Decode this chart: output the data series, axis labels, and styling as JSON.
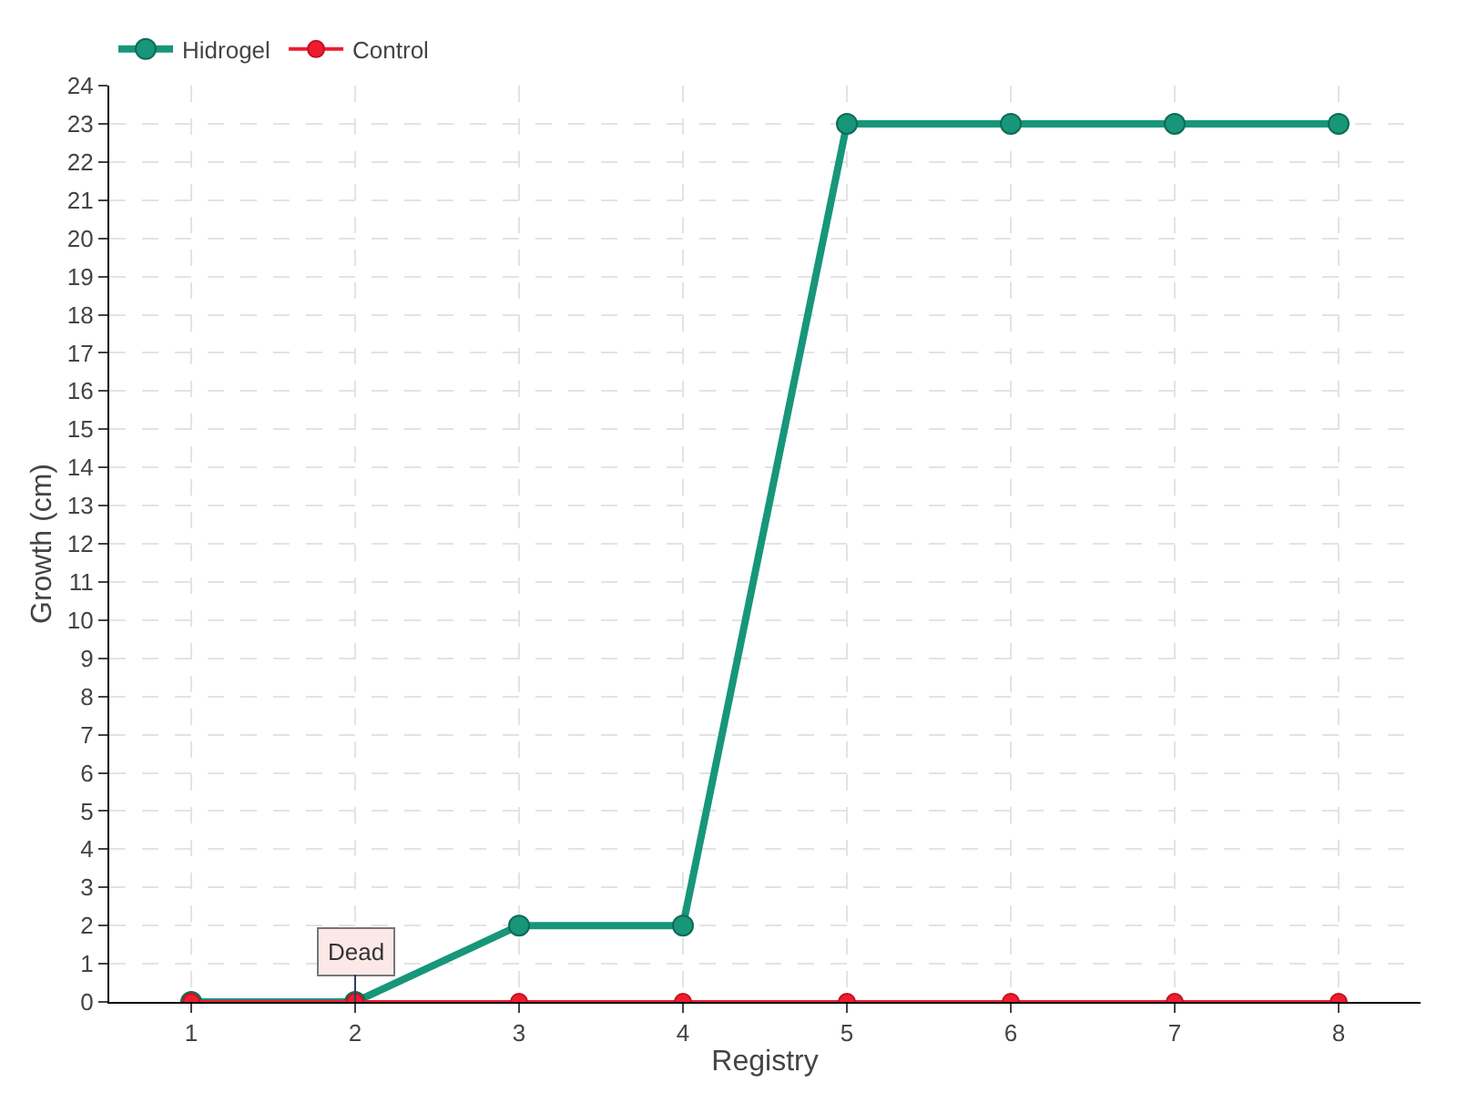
{
  "chart_data": {
    "type": "line",
    "xlabel": "Registry",
    "ylabel": "Growth (cm)",
    "x": [
      1,
      2,
      3,
      4,
      5,
      6,
      7,
      8
    ],
    "series": [
      {
        "name": "Hidrogel",
        "color": "#17967a",
        "values": [
          0,
          0,
          2,
          2,
          23,
          23,
          23,
          23
        ]
      },
      {
        "name": "Control",
        "color": "#ee1c2e",
        "values": [
          0,
          0,
          0,
          0,
          0,
          0,
          0,
          0
        ]
      }
    ],
    "xlim": [
      0.5,
      8.5
    ],
    "xticks": [
      1,
      2,
      3,
      4,
      5,
      6,
      7,
      8
    ],
    "ylim": [
      0,
      24
    ],
    "yticks": [
      0,
      1,
      2,
      3,
      4,
      5,
      6,
      7,
      8,
      9,
      10,
      11,
      12,
      13,
      14,
      15,
      16,
      17,
      18,
      19,
      20,
      21,
      22,
      23,
      24
    ],
    "annotations": [
      {
        "text": "Dead",
        "x": 2,
        "y": 0
      }
    ],
    "grid": true,
    "legend": "top left",
    "marker": "circle",
    "line_style": "solid"
  }
}
